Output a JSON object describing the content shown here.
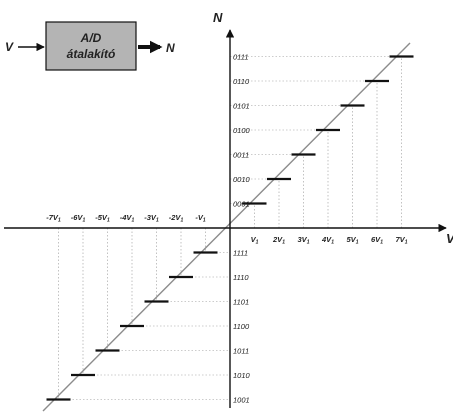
{
  "block": {
    "input_label": "V",
    "line1": "A/D",
    "line2": "átalakító",
    "output_label": "N"
  },
  "axes": {
    "y_title": "N",
    "x_title": "V"
  },
  "positive_ticks": [
    "V1",
    "2V1",
    "3V1",
    "4V1",
    "5V1",
    "6V1",
    "7V1"
  ],
  "negative_ticks": [
    "-7V1",
    "-6V1",
    "-5V1",
    "-4V1",
    "-3V1",
    "-2V1",
    "-V1"
  ],
  "positive_codes": [
    "0001",
    "0010",
    "0011",
    "0100",
    "0101",
    "0110",
    "0111"
  ],
  "negative_codes": [
    "1111",
    "1110",
    "1101",
    "1100",
    "1011",
    "1010",
    "1001"
  ],
  "colors": {
    "block_fill": "#b4b4b4",
    "line": "#111111",
    "diagonal": "#8c8c8c",
    "guide": "#9a9a9a"
  }
}
